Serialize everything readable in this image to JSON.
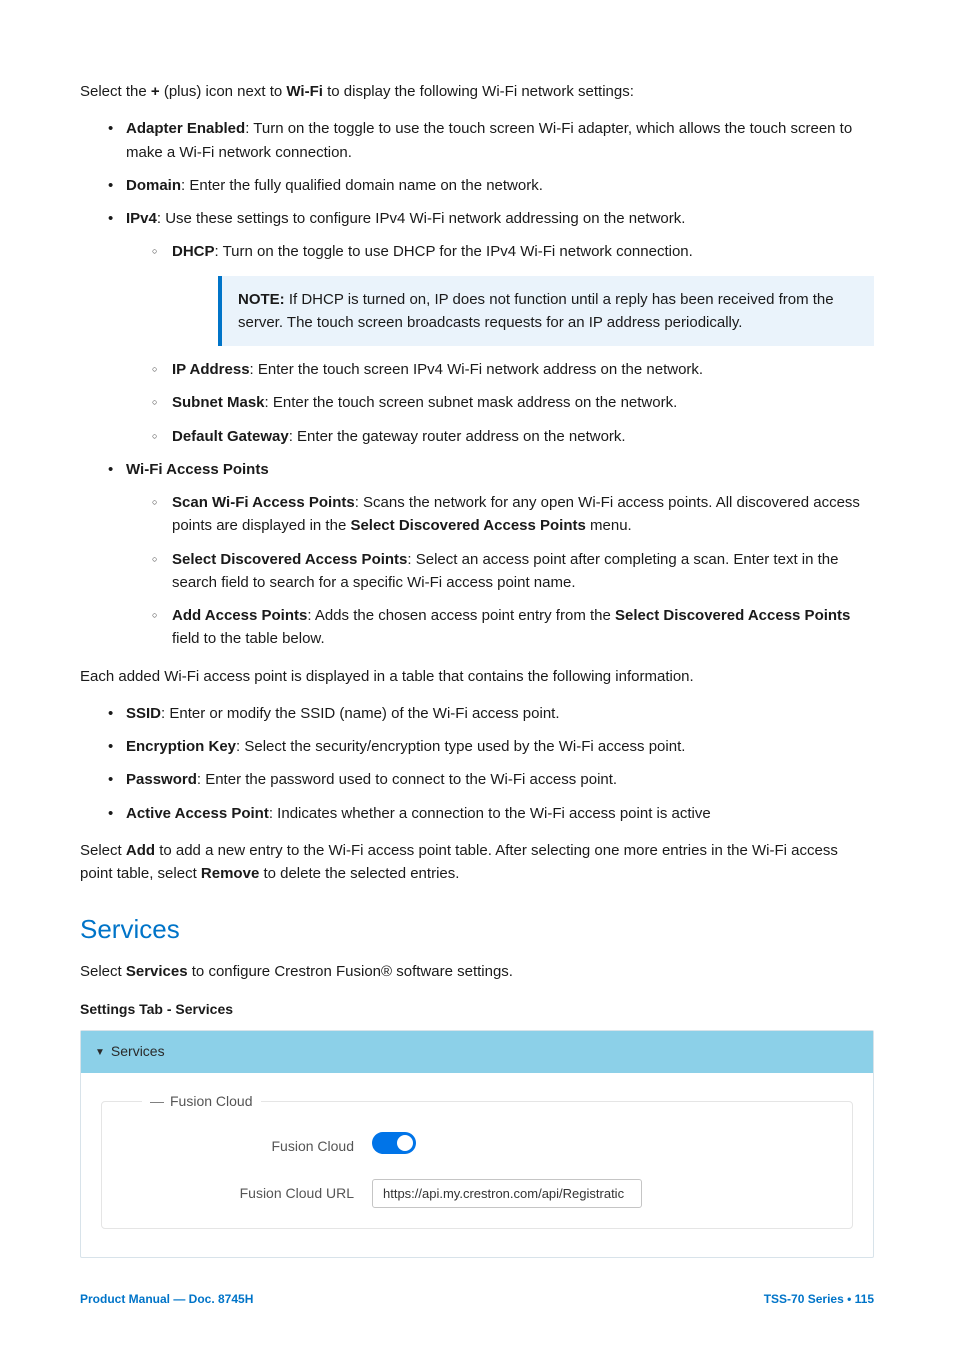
{
  "intro": {
    "pre": "Select the ",
    "plus": "+",
    "mid": " (plus) icon next to ",
    "wifi": "Wi-Fi",
    "post": " to display the following Wi-Fi network settings:"
  },
  "items": {
    "adapter_label": "Adapter Enabled",
    "adapter_text": ": Turn on the toggle to use the touch screen Wi-Fi adapter, which allows the touch screen to make a Wi-Fi network connection.",
    "domain_label": "Domain",
    "domain_text": ": Enter the fully qualified domain name on the network.",
    "ipv4_label": "IPv4",
    "ipv4_text": ": Use these settings to configure IPv4 Wi-Fi network addressing on the network.",
    "dhcp_label": "DHCP",
    "dhcp_text": ": Turn on the toggle to use DHCP for the IPv4 Wi-Fi network connection.",
    "note_label": "NOTE:",
    "note_text": " If DHCP is turned on, IP does not function until a reply has been received from the server. The touch screen broadcasts requests for an IP address periodically.",
    "ip_label": "IP Address",
    "ip_text": ": Enter the touch screen IPv4 Wi-Fi network address on the network.",
    "subnet_label": "Subnet Mask",
    "subnet_text": ": Enter the touch screen subnet mask address on the network.",
    "gateway_label": "Default Gateway",
    "gateway_text": ": Enter the gateway router address on the network.",
    "wap_label": "Wi-Fi Access Points",
    "scan_label": "Scan Wi-Fi Access Points",
    "scan_text_a": ": Scans the network for any open Wi-Fi access points. All discovered access points are displayed in the ",
    "scan_bold": "Select Discovered Access Points",
    "scan_text_b": " menu.",
    "select_label": "Select Discovered Access Points",
    "select_text": ": Select an access point after completing a scan. Enter text in the search field to search for a specific Wi-Fi access point name.",
    "add_label": "Add Access Points",
    "add_text_a": ": Adds the chosen access point entry from the ",
    "add_bold": "Select Discovered Access Points",
    "add_text_b": " field to the table below."
  },
  "table_intro": "Each added Wi-Fi access point is displayed in a table that contains the following information.",
  "table": {
    "ssid_label": "SSID",
    "ssid_text": ": Enter or modify the SSID (name) of the Wi-Fi access point.",
    "enc_label": "Encryption Key",
    "enc_text": ": Select the security/encryption type used by the Wi-Fi access point.",
    "pwd_label": "Password",
    "pwd_text": ": Enter the password used to connect to the Wi-Fi access point.",
    "active_label": "Active Access Point",
    "active_text": ": Indicates whether a connection to the Wi-Fi access point is active"
  },
  "addremove": {
    "a": "Select ",
    "add": "Add",
    "b": " to add a new entry to the Wi-Fi access point table. After selecting one more entries in the Wi-Fi access point table, select ",
    "remove": "Remove",
    "c": " to delete the selected entries."
  },
  "services": {
    "heading": "Services",
    "intro_a": "Select ",
    "intro_b": "Services",
    "intro_c": " to configure Crestron Fusion® software settings.",
    "caption": "Settings Tab - Services",
    "panel_title": "Services",
    "legend": "Fusion Cloud",
    "toggle_label": "Fusion Cloud",
    "url_label": "Fusion Cloud URL",
    "url_value": "https://api.my.crestron.com/api/Registratic"
  },
  "footer": {
    "left": "Product Manual — Doc. 8745H",
    "right": "TSS-70 Series • 115"
  }
}
